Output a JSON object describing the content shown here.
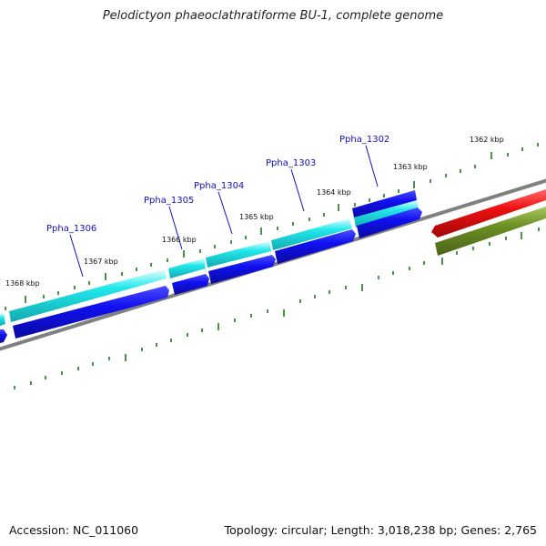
{
  "title": "Pelodictyon phaeoclathratiforme BU-1, complete genome",
  "footer": {
    "accession": "Accession: NC_011060",
    "summary": "Topology: circular; Length: 3,018,238 bp; Genes: 2,765"
  },
  "colors": {
    "cds_forward": "#22e8ec",
    "cds_reverse": "#1010f0",
    "rna_red": "#ee1010",
    "rna_olive": "#6b8e23",
    "backbone": "#808080",
    "tick": "#1a7a1a",
    "gene_label": "#1010c8"
  },
  "gene_labels": [
    "Ppha_1302",
    "Ppha_1303",
    "Ppha_1304",
    "Ppha_1305",
    "Ppha_1306"
  ],
  "kbp_labels": [
    "1362 kbp",
    "1363 kbp",
    "1364 kbp",
    "1365 kbp",
    "1366 kbp",
    "1367 kbp",
    "1368 kbp"
  ]
}
